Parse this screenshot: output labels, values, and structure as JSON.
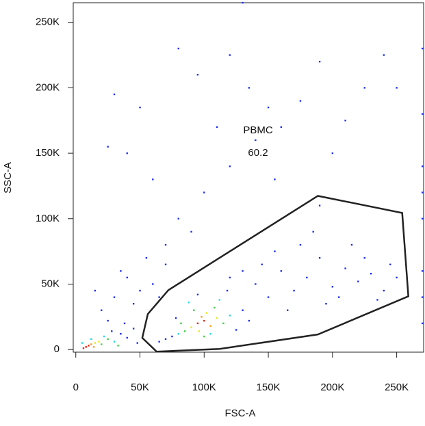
{
  "chart_data": {
    "type": "scatter",
    "x_label": "FSC-A",
    "y_label": "SSC-A",
    "xlim": [
      -2000,
      271000
    ],
    "ylim": [
      -2000,
      265000
    ],
    "xticks": [
      0,
      {
        "value": 50000,
        "label": "50K"
      },
      {
        "value": 100000,
        "label": "100K"
      },
      {
        "value": 150000,
        "label": "150K"
      },
      {
        "value": 200000,
        "label": "200K"
      },
      {
        "value": 250000,
        "label": "250K"
      }
    ],
    "yticks": [
      0,
      {
        "value": 50000,
        "label": "50K"
      },
      {
        "value": 100000,
        "label": "100K"
      },
      {
        "value": 150000,
        "label": "150K"
      },
      {
        "value": 200000,
        "label": "200K"
      },
      {
        "value": 250000,
        "label": "250K"
      }
    ],
    "series": [
      {
        "color": "#1f2ff0",
        "x": [
          35000,
          28000,
          40000,
          45000,
          38000,
          48000,
          75000,
          70000,
          125000,
          130000,
          118000,
          95000,
          65000,
          78000,
          135000,
          140000,
          150000,
          160000,
          170000,
          180000,
          190000,
          200000,
          210000,
          220000,
          230000,
          240000,
          245000,
          155000,
          175000,
          195000,
          215000,
          165000,
          185000,
          205000,
          145000,
          225000,
          235000,
          250000,
          130000,
          120000,
          20000,
          30000,
          40000,
          50000,
          25000,
          35000,
          55000,
          45000,
          60000,
          15000,
          70000,
          65000,
          30000,
          50000,
          80000,
          95000,
          120000,
          135000,
          150000,
          160000,
          175000,
          190000,
          210000,
          225000,
          240000,
          250000,
          140000,
          120000,
          100000,
          80000,
          60000,
          40000,
          25000,
          130000,
          155000,
          110000,
          200000,
          90000,
          70000,
          190000,
          270000,
          270000,
          270000,
          270000,
          270000,
          270000,
          270000,
          270000
        ],
        "values": [
          12000,
          14000,
          9000,
          16000,
          20000,
          5000,
          10000,
          8000,
          15000,
          30000,
          45000,
          42000,
          6000,
          24000,
          22000,
          50000,
          40000,
          60000,
          45000,
          55000,
          70000,
          48000,
          62000,
          52000,
          58000,
          45000,
          65000,
          75000,
          80000,
          35000,
          80000,
          30000,
          90000,
          40000,
          65000,
          70000,
          38000,
          55000,
          60000,
          55000,
          30000,
          40000,
          55000,
          45000,
          22000,
          60000,
          70000,
          35000,
          50000,
          45000,
          65000,
          40000,
          195000,
          185000,
          230000,
          210000,
          225000,
          200000,
          185000,
          170000,
          190000,
          220000,
          175000,
          200000,
          225000,
          200000,
          160000,
          140000,
          120000,
          100000,
          130000,
          150000,
          155000,
          265000,
          130000,
          170000,
          150000,
          90000,
          80000,
          110000,
          20000,
          60000,
          100000,
          140000,
          180000,
          230000,
          40000,
          120000
        ]
      },
      {
        "color": "#20d8e8",
        "x": [
          30000,
          22000,
          12000,
          5000,
          80000,
          120000,
          88000,
          112000,
          105000
        ],
        "values": [
          6000,
          10000,
          8000,
          5000,
          12000,
          26000,
          36000,
          38000,
          12000
        ]
      },
      {
        "color": "#3cd23c",
        "x": [
          20000,
          25000,
          33000,
          85000,
          115000,
          108000,
          92000,
          100000,
          82000
        ],
        "values": [
          4000,
          8000,
          3000,
          14000,
          20000,
          32000,
          30000,
          10000,
          20000
        ]
      },
      {
        "color": "#e8e820",
        "x": [
          15000,
          18000,
          90000,
          110000,
          102000,
          96000
        ],
        "values": [
          5000,
          6000,
          17000,
          24000,
          28000,
          14000
        ]
      },
      {
        "color": "#f59a18",
        "x": [
          12000,
          14000,
          105000,
          98000
        ],
        "values": [
          4000,
          2000,
          18000,
          25000
        ]
      },
      {
        "color": "#e02010",
        "x": [
          8000,
          10000,
          6000,
          95000,
          100000
        ],
        "values": [
          2000,
          3000,
          1000,
          20000,
          22000
        ]
      }
    ],
    "gate": {
      "name": "PBMC",
      "value": 60.2,
      "color": "#222222",
      "x": [
        51800,
        56100,
        72100,
        188600,
        254300,
        259100,
        188600,
        112200,
        63000
      ],
      "y": [
        8900,
        27100,
        45400,
        117400,
        104400,
        40700,
        11500,
        500,
        -1600
      ]
    }
  }
}
